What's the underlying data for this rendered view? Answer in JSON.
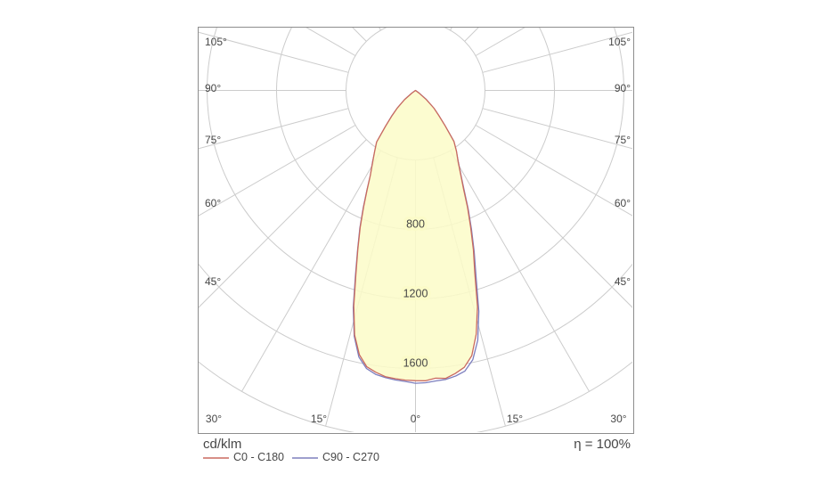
{
  "chart_data": {
    "type": "line",
    "subtype": "polar-photometric",
    "unit_label": "cd/klm",
    "efficiency_label": "η = 100%",
    "grid": {
      "radial_grid_values": [
        400,
        800,
        1200,
        1600,
        2000
      ],
      "ray_step_deg": 15,
      "ray_inner_value": 400,
      "ray_outer_value": 2000,
      "grid_color": "#cccccc"
    },
    "radial_ticks": [
      {
        "value": 800,
        "label": "800"
      },
      {
        "value": 1200,
        "label": "1200"
      },
      {
        "value": 1600,
        "label": "1600"
      }
    ],
    "angle_ticks_left": [
      "105°",
      "90°",
      "75°",
      "60°",
      "45°"
    ],
    "angle_ticks_bottom": [
      "30°",
      "15°",
      "0°",
      "15°",
      "30°"
    ],
    "angle_ticks_right": [
      "45°",
      "60°",
      "75°",
      "90°",
      "105°"
    ],
    "fill_color": "#fbfbc8",
    "fill_opacity": 0.85,
    "series": [
      {
        "name": "C0 - C180",
        "color": "#c96a5f",
        "angles_deg": [
          -57,
          -54,
          -50,
          -46,
          -43,
          -40,
          -37,
          -34,
          -31,
          -28,
          -26,
          -24,
          -22,
          -20,
          -18,
          -16,
          -14,
          -12,
          -10,
          -8,
          -6,
          -4,
          -2,
          0,
          2,
          4,
          6,
          8,
          10,
          12,
          14,
          16,
          18,
          20,
          22,
          24,
          26,
          28,
          31,
          34,
          37,
          40,
          43,
          46,
          50,
          54,
          57
        ],
        "values_cd_per_klm": [
          0,
          26,
          84,
          146,
          198,
          268,
          372,
          420,
          478,
          555,
          635,
          735,
          850,
          970,
          1110,
          1290,
          1450,
          1555,
          1615,
          1638,
          1656,
          1663,
          1668,
          1670,
          1672,
          1660,
          1666,
          1645,
          1618,
          1560,
          1445,
          1295,
          1105,
          975,
          848,
          738,
          632,
          558,
          476,
          422,
          368,
          266,
          196,
          148,
          82,
          24,
          0
        ]
      },
      {
        "name": "C90 - C270",
        "color": "#7d7fbe",
        "angles_deg": [
          -57,
          -54,
          -50,
          -46,
          -43,
          -40,
          -37,
          -34,
          -31,
          -28,
          -26,
          -24,
          -22,
          -20,
          -18,
          -16,
          -14,
          -12,
          -10,
          -8,
          -6,
          -4,
          -2,
          0,
          2,
          4,
          6,
          8,
          10,
          12,
          14,
          16,
          18,
          20,
          22,
          24,
          26,
          28,
          31,
          34,
          37,
          40,
          43,
          46,
          50,
          54,
          57
        ],
        "values_cd_per_klm": [
          0,
          22,
          80,
          142,
          200,
          262,
          366,
          416,
          480,
          552,
          638,
          740,
          855,
          975,
          1118,
          1300,
          1458,
          1568,
          1625,
          1650,
          1662,
          1670,
          1676,
          1685,
          1683,
          1676,
          1672,
          1660,
          1640,
          1585,
          1482,
          1322,
          1128,
          988,
          860,
          745,
          640,
          560,
          478,
          420,
          366,
          262,
          194,
          144,
          80,
          22,
          0
        ]
      }
    ]
  }
}
